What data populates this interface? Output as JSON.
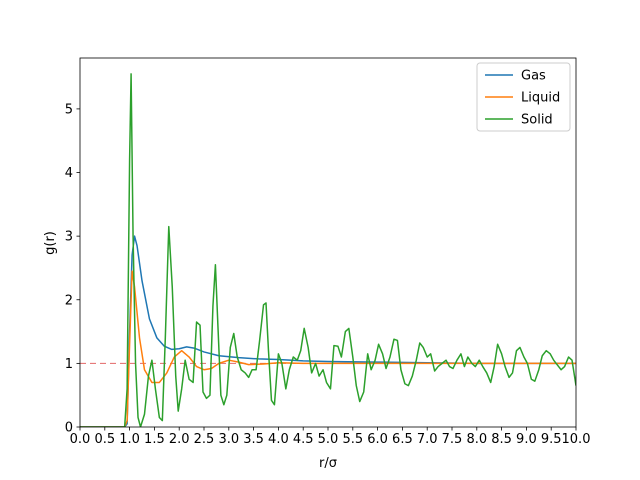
{
  "chart_data": {
    "type": "line",
    "xlabel": "r/σ",
    "ylabel": "g(r)",
    "xlim": [
      0,
      10
    ],
    "ylim": [
      0,
      5.8
    ],
    "grid": false,
    "legend_placement": "top-right",
    "reference_line": {
      "y": 1.0,
      "style": "dashed",
      "color": "#d62728"
    },
    "x_ticks": [
      "0.0",
      "0.5",
      "1.0",
      "1.5",
      "2.0",
      "2.5",
      "3.0",
      "3.5",
      "4.0",
      "4.5",
      "5.0",
      "5.5",
      "6.0",
      "6.5",
      "7.0",
      "7.5",
      "8.0",
      "8.5",
      "9.0",
      "9.5",
      "10.0"
    ],
    "y_ticks": [
      "0",
      "1",
      "2",
      "3",
      "4",
      "5"
    ],
    "series": [
      {
        "name": "Gas",
        "color": "#1f77b4",
        "points": [
          [
            0,
            0
          ],
          [
            0.9,
            0
          ],
          [
            0.95,
            0.05
          ],
          [
            1.0,
            1.5
          ],
          [
            1.05,
            2.7
          ],
          [
            1.1,
            3.0
          ],
          [
            1.15,
            2.85
          ],
          [
            1.25,
            2.3
          ],
          [
            1.4,
            1.7
          ],
          [
            1.55,
            1.4
          ],
          [
            1.7,
            1.27
          ],
          [
            1.85,
            1.22
          ],
          [
            2.0,
            1.23
          ],
          [
            2.15,
            1.26
          ],
          [
            2.3,
            1.24
          ],
          [
            2.5,
            1.18
          ],
          [
            2.8,
            1.12
          ],
          [
            3.2,
            1.09
          ],
          [
            3.6,
            1.07
          ],
          [
            4.0,
            1.06
          ],
          [
            4.5,
            1.04
          ],
          [
            5.0,
            1.03
          ],
          [
            6.0,
            1.02
          ],
          [
            7.0,
            1.01
          ],
          [
            8.0,
            1.0
          ],
          [
            9.0,
            1.0
          ],
          [
            10.0,
            1.0
          ]
        ]
      },
      {
        "name": "Liquid",
        "color": "#ff7f0e",
        "points": [
          [
            0,
            0
          ],
          [
            0.9,
            0
          ],
          [
            0.95,
            0.1
          ],
          [
            1.0,
            1.3
          ],
          [
            1.05,
            2.45
          ],
          [
            1.1,
            2.2
          ],
          [
            1.2,
            1.4
          ],
          [
            1.3,
            0.9
          ],
          [
            1.45,
            0.7
          ],
          [
            1.6,
            0.7
          ],
          [
            1.75,
            0.85
          ],
          [
            1.9,
            1.1
          ],
          [
            2.05,
            1.2
          ],
          [
            2.2,
            1.1
          ],
          [
            2.35,
            0.95
          ],
          [
            2.5,
            0.9
          ],
          [
            2.65,
            0.92
          ],
          [
            2.8,
            1.0
          ],
          [
            3.0,
            1.05
          ],
          [
            3.2,
            1.02
          ],
          [
            3.4,
            0.98
          ],
          [
            3.7,
            0.99
          ],
          [
            4.0,
            1.01
          ],
          [
            4.5,
            1.0
          ],
          [
            5.0,
            1.0
          ],
          [
            6.0,
            1.0
          ],
          [
            8.0,
            1.0
          ],
          [
            10.0,
            1.0
          ]
        ]
      },
      {
        "name": "Solid",
        "color": "#2ca02c",
        "points": [
          [
            0,
            0
          ],
          [
            0.9,
            0
          ],
          [
            0.95,
            0.6
          ],
          [
            1.0,
            4.2
          ],
          [
            1.03,
            5.55
          ],
          [
            1.07,
            3.0
          ],
          [
            1.12,
            1.0
          ],
          [
            1.17,
            0.15
          ],
          [
            1.22,
            0.0
          ],
          [
            1.3,
            0.2
          ],
          [
            1.38,
            0.8
          ],
          [
            1.45,
            1.05
          ],
          [
            1.52,
            0.6
          ],
          [
            1.6,
            0.15
          ],
          [
            1.66,
            0.1
          ],
          [
            1.72,
            1.4
          ],
          [
            1.79,
            3.15
          ],
          [
            1.86,
            2.2
          ],
          [
            1.93,
            0.8
          ],
          [
            1.98,
            0.25
          ],
          [
            2.05,
            0.6
          ],
          [
            2.12,
            1.05
          ],
          [
            2.2,
            0.75
          ],
          [
            2.28,
            0.7
          ],
          [
            2.35,
            1.65
          ],
          [
            2.42,
            1.6
          ],
          [
            2.48,
            0.55
          ],
          [
            2.55,
            0.45
          ],
          [
            2.62,
            0.5
          ],
          [
            2.68,
            1.9
          ],
          [
            2.73,
            2.55
          ],
          [
            2.78,
            1.6
          ],
          [
            2.84,
            0.5
          ],
          [
            2.9,
            0.35
          ],
          [
            2.96,
            0.5
          ],
          [
            3.03,
            1.25
          ],
          [
            3.1,
            1.47
          ],
          [
            3.17,
            1.1
          ],
          [
            3.25,
            0.9
          ],
          [
            3.33,
            0.85
          ],
          [
            3.4,
            0.78
          ],
          [
            3.47,
            0.9
          ],
          [
            3.55,
            0.9
          ],
          [
            3.62,
            1.35
          ],
          [
            3.7,
            1.92
          ],
          [
            3.75,
            1.95
          ],
          [
            3.8,
            1.2
          ],
          [
            3.86,
            0.42
          ],
          [
            3.92,
            0.35
          ],
          [
            4.0,
            1.15
          ],
          [
            4.07,
            1.0
          ],
          [
            4.15,
            0.6
          ],
          [
            4.22,
            0.9
          ],
          [
            4.3,
            1.1
          ],
          [
            4.38,
            1.05
          ],
          [
            4.45,
            1.2
          ],
          [
            4.52,
            1.55
          ],
          [
            4.6,
            1.25
          ],
          [
            4.67,
            0.85
          ],
          [
            4.75,
            1.0
          ],
          [
            4.82,
            0.8
          ],
          [
            4.9,
            0.9
          ],
          [
            4.97,
            0.7
          ],
          [
            5.05,
            0.6
          ],
          [
            5.12,
            1.28
          ],
          [
            5.2,
            1.27
          ],
          [
            5.27,
            1.1
          ],
          [
            5.35,
            1.5
          ],
          [
            5.42,
            1.55
          ],
          [
            5.5,
            1.1
          ],
          [
            5.57,
            0.65
          ],
          [
            5.64,
            0.4
          ],
          [
            5.72,
            0.55
          ],
          [
            5.8,
            1.15
          ],
          [
            5.87,
            0.9
          ],
          [
            5.95,
            1.05
          ],
          [
            6.02,
            1.3
          ],
          [
            6.1,
            1.15
          ],
          [
            6.17,
            0.92
          ],
          [
            6.25,
            1.1
          ],
          [
            6.33,
            1.38
          ],
          [
            6.4,
            1.36
          ],
          [
            6.47,
            0.9
          ],
          [
            6.55,
            0.68
          ],
          [
            6.62,
            0.65
          ],
          [
            6.7,
            0.8
          ],
          [
            6.78,
            1.05
          ],
          [
            6.85,
            1.32
          ],
          [
            6.92,
            1.25
          ],
          [
            7.0,
            1.1
          ],
          [
            7.07,
            1.15
          ],
          [
            7.15,
            0.88
          ],
          [
            7.22,
            0.95
          ],
          [
            7.3,
            1.0
          ],
          [
            7.38,
            1.05
          ],
          [
            7.45,
            0.95
          ],
          [
            7.52,
            0.92
          ],
          [
            7.6,
            1.05
          ],
          [
            7.68,
            1.15
          ],
          [
            7.75,
            0.95
          ],
          [
            7.82,
            1.1
          ],
          [
            7.9,
            1.0
          ],
          [
            7.97,
            0.95
          ],
          [
            8.05,
            1.05
          ],
          [
            8.12,
            0.95
          ],
          [
            8.2,
            0.85
          ],
          [
            8.28,
            0.7
          ],
          [
            8.35,
            0.95
          ],
          [
            8.42,
            1.3
          ],
          [
            8.5,
            1.15
          ],
          [
            8.57,
            0.95
          ],
          [
            8.65,
            0.78
          ],
          [
            8.72,
            0.85
          ],
          [
            8.8,
            1.2
          ],
          [
            8.87,
            1.25
          ],
          [
            8.95,
            1.1
          ],
          [
            9.02,
            1.0
          ],
          [
            9.1,
            0.75
          ],
          [
            9.17,
            0.72
          ],
          [
            9.25,
            0.9
          ],
          [
            9.32,
            1.12
          ],
          [
            9.4,
            1.2
          ],
          [
            9.48,
            1.15
          ],
          [
            9.55,
            1.05
          ],
          [
            9.62,
            0.98
          ],
          [
            9.7,
            0.9
          ],
          [
            9.77,
            0.95
          ],
          [
            9.85,
            1.1
          ],
          [
            9.92,
            1.05
          ],
          [
            10.0,
            0.65
          ]
        ]
      }
    ]
  }
}
